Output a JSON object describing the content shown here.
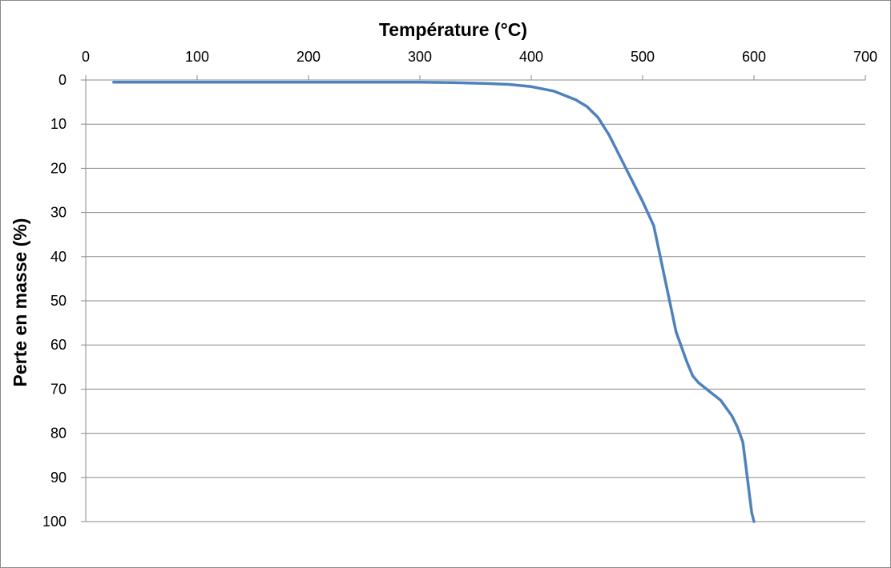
{
  "chart_data": {
    "type": "line",
    "title": "",
    "xlabel": "Température (°C)",
    "ylabel": "Perte en masse (%)",
    "xlim": [
      0,
      700
    ],
    "ylim": [
      0,
      100
    ],
    "x_axis_position": "top",
    "y_axis_inverted": true,
    "x_ticks": [
      "0",
      "100",
      "200",
      "300",
      "400",
      "500",
      "600",
      "700"
    ],
    "y_ticks": [
      "0",
      "10",
      "20",
      "30",
      "40",
      "50",
      "60",
      "70",
      "80",
      "90",
      "100"
    ],
    "grid": {
      "horizontal": true,
      "vertical": false
    },
    "legend": "none",
    "series": [
      {
        "color": "#4f81bd",
        "x": [
          25,
          100,
          200,
          300,
          330,
          360,
          380,
          400,
          420,
          440,
          450,
          460,
          470,
          480,
          490,
          500,
          510,
          515,
          520,
          525,
          530,
          540,
          545,
          550,
          560,
          570,
          580,
          585,
          590,
          593,
          596,
          598,
          600
        ],
        "y": [
          0.5,
          0.5,
          0.5,
          0.5,
          0.6,
          0.8,
          1.0,
          1.5,
          2.5,
          4.5,
          6.0,
          8.5,
          12.5,
          17.5,
          22.5,
          27.5,
          33.0,
          39.0,
          45.0,
          51.0,
          57.0,
          64.0,
          67.0,
          68.5,
          70.5,
          72.5,
          76.0,
          78.5,
          82.0,
          88.0,
          94.0,
          98.0,
          100.0
        ]
      }
    ]
  }
}
